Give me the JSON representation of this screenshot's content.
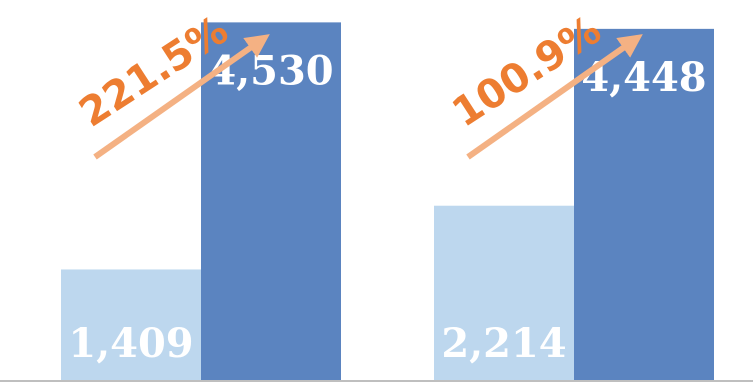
{
  "chart_data": {
    "type": "bar",
    "groups": [
      {
        "values": [
          1409,
          4530
        ],
        "value_labels": [
          "1,409",
          "4,530"
        ],
        "growth_label": "221.5%"
      },
      {
        "values": [
          2214,
          4448
        ],
        "value_labels": [
          "2,214",
          "4,448"
        ],
        "growth_label": "100.9%"
      }
    ],
    "ylim": [
      0,
      4800
    ],
    "grid": false,
    "colors": {
      "first_bar": "#bdd7ee",
      "second_bar": "#5b84c0",
      "growth_label": "#ed7d31",
      "arrow": "#f4b183",
      "axis": "#bfbfbf"
    }
  }
}
